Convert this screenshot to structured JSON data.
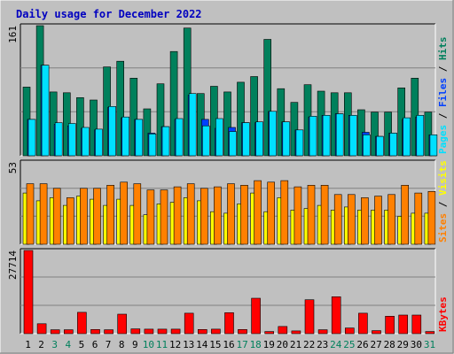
{
  "title": "Daily usage for December 2022",
  "colors": {
    "hits": "#00805c",
    "files": "#0040ff",
    "pages": "#00e0ff",
    "visits": "#ffff00",
    "sites": "#ff8000",
    "kbytes": "#ff0000",
    "weekday_label": "#000000",
    "weekend_label": "#00805c",
    "panel_bg": "#c0c0c0",
    "grid": "#808080"
  },
  "chart_data": [
    {
      "type": "bar",
      "panel": "hits-files-pages",
      "ymax_label": "161",
      "ylim": [
        0,
        161
      ],
      "categories": [
        "1",
        "2",
        "3",
        "4",
        "5",
        "6",
        "7",
        "8",
        "9",
        "10",
        "11",
        "12",
        "13",
        "14",
        "15",
        "16",
        "17",
        "18",
        "19",
        "20",
        "21",
        "22",
        "23",
        "24",
        "25",
        "26",
        "27",
        "28",
        "29",
        "30",
        "31"
      ],
      "series": [
        {
          "name": "Hits",
          "values": [
            85,
            161,
            79,
            78,
            72,
            69,
            110,
            117,
            96,
            58,
            89,
            129,
            158,
            77,
            86,
            79,
            91,
            98,
            144,
            83,
            66,
            88,
            80,
            78,
            78,
            57,
            54,
            54,
            84,
            96,
            54
          ]
        },
        {
          "name": "Files",
          "values": [
            45,
            112,
            39,
            37,
            34,
            32,
            60,
            47,
            45,
            28,
            36,
            45,
            75,
            45,
            34,
            35,
            41,
            41,
            55,
            42,
            32,
            48,
            50,
            52,
            50,
            29,
            24,
            28,
            45,
            48,
            26
          ]
        },
        {
          "name": "Pages",
          "values": [
            45,
            112,
            41,
            40,
            35,
            33,
            61,
            48,
            45,
            27,
            36,
            46,
            77,
            37,
            46,
            30,
            41,
            42,
            55,
            42,
            32,
            49,
            50,
            52,
            50,
            26,
            24,
            28,
            47,
            50,
            26
          ]
        }
      ],
      "legend": [
        "Pages",
        "Files",
        "Hits"
      ]
    },
    {
      "type": "bar",
      "panel": "visits-sites",
      "ymax_label": "53",
      "ylim": [
        0,
        53
      ],
      "categories": [
        "1",
        "2",
        "3",
        "4",
        "5",
        "6",
        "7",
        "8",
        "9",
        "10",
        "11",
        "12",
        "13",
        "14",
        "15",
        "16",
        "17",
        "18",
        "19",
        "20",
        "21",
        "22",
        "23",
        "24",
        "25",
        "26",
        "27",
        "28",
        "29",
        "30",
        "31"
      ],
      "series": [
        {
          "name": "Visits",
          "values": [
            33,
            28,
            30,
            25,
            31,
            29,
            25,
            29,
            25,
            19,
            26,
            27,
            30,
            28,
            21,
            20,
            26,
            33,
            21,
            30,
            22,
            23,
            25,
            22,
            24,
            22,
            22,
            22,
            18,
            20,
            20
          ]
        },
        {
          "name": "Sites",
          "values": [
            39,
            39,
            36,
            30,
            36,
            36,
            38,
            40,
            39,
            35,
            35,
            37,
            39,
            36,
            37,
            39,
            38,
            41,
            40,
            41,
            37,
            38,
            38,
            32,
            32,
            30,
            31,
            32,
            38,
            33,
            34
          ]
        }
      ],
      "legend": [
        "Sites",
        "Visits"
      ]
    },
    {
      "type": "bar",
      "panel": "kbytes",
      "ymax_label": "27714",
      "ylim": [
        0,
        27714
      ],
      "categories": [
        "1",
        "2",
        "3",
        "4",
        "5",
        "6",
        "7",
        "8",
        "9",
        "10",
        "11",
        "12",
        "13",
        "14",
        "15",
        "16",
        "17",
        "18",
        "19",
        "20",
        "21",
        "22",
        "23",
        "24",
        "25",
        "26",
        "27",
        "28",
        "29",
        "30",
        "31"
      ],
      "series": [
        {
          "name": "KBytes",
          "values": [
            27714,
            3300,
            1300,
            1300,
            7100,
            1400,
            1300,
            6500,
            1600,
            1500,
            1500,
            1500,
            6800,
            1400,
            1500,
            7000,
            1400,
            11800,
            700,
            2400,
            900,
            11300,
            1300,
            12300,
            1900,
            6800,
            1000,
            5800,
            6200,
            6200,
            700
          ]
        }
      ],
      "legend": [
        "KBytes"
      ]
    }
  ],
  "weekend_days": [
    "3",
    "4",
    "10",
    "11",
    "17",
    "18",
    "24",
    "25",
    "31"
  ]
}
